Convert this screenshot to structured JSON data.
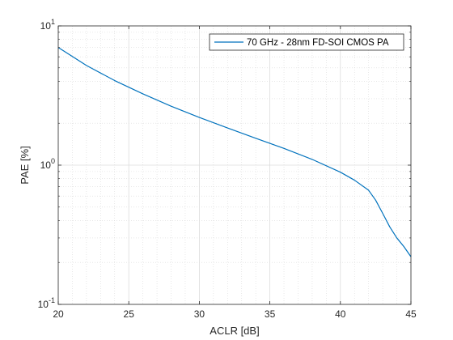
{
  "chart_data": {
    "type": "line",
    "title": "",
    "xlabel": "ACLR [dB]",
    "ylabel": "PAE [%]",
    "xlim": [
      20,
      45
    ],
    "ylim": [
      0.1,
      10
    ],
    "yscale": "log",
    "x_ticks": [
      "20",
      "25",
      "30",
      "35",
      "40",
      "45"
    ],
    "y_ticks": [
      {
        "base": "10",
        "exp": "-1"
      },
      {
        "base": "10",
        "exp": "0"
      },
      {
        "base": "10",
        "exp": "1"
      }
    ],
    "grid": true,
    "minor_grid": true,
    "legend_position": "top-right",
    "series": [
      {
        "name": "70 GHz - 28nm FD-SOI CMOS PA",
        "color": "#0072BD",
        "x": [
          20,
          22,
          24,
          26,
          28,
          30,
          32,
          34,
          36,
          38,
          40,
          41,
          42,
          42.5,
          43,
          43.5,
          44,
          44.5,
          45
        ],
        "y": [
          7.0,
          5.2,
          4.05,
          3.25,
          2.65,
          2.2,
          1.85,
          1.56,
          1.32,
          1.1,
          0.89,
          0.78,
          0.66,
          0.56,
          0.45,
          0.36,
          0.3,
          0.26,
          0.22
        ]
      }
    ]
  }
}
